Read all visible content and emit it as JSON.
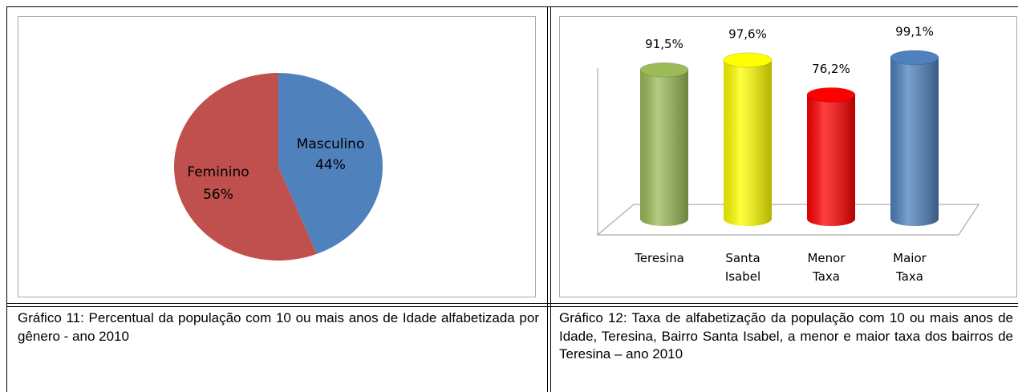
{
  "chart_data": [
    {
      "type": "pie",
      "categories": [
        "Masculino",
        "Feminino"
      ],
      "values": [
        44,
        56
      ],
      "value_labels": [
        "44%",
        "56%"
      ],
      "colors": [
        "#4f81bd",
        "#c0504d"
      ],
      "caption": "Gráfico 11: Percentual da população com 10 ou mais anos de Idade alfabetizada por gênero - ano 2010"
    },
    {
      "type": "bar",
      "categories": [
        "Teresina",
        "Santa Isabel",
        "Menor Taxa",
        "Maior Taxa"
      ],
      "values": [
        91.5,
        97.6,
        76.2,
        99.1
      ],
      "value_labels": [
        "91,5%",
        "97,6%",
        "76,2%",
        "99,1%"
      ],
      "colors": [
        "#9bbb59",
        "#ffff00",
        "#ff0000",
        "#4f81bd"
      ],
      "caption": "Gráfico 12: Taxa de alfabetização da população com 10 ou mais anos de Idade, Teresina, Bairro Santa Isabel, a menor e maior taxa dos bairros de Teresina – ano 2010"
    }
  ]
}
